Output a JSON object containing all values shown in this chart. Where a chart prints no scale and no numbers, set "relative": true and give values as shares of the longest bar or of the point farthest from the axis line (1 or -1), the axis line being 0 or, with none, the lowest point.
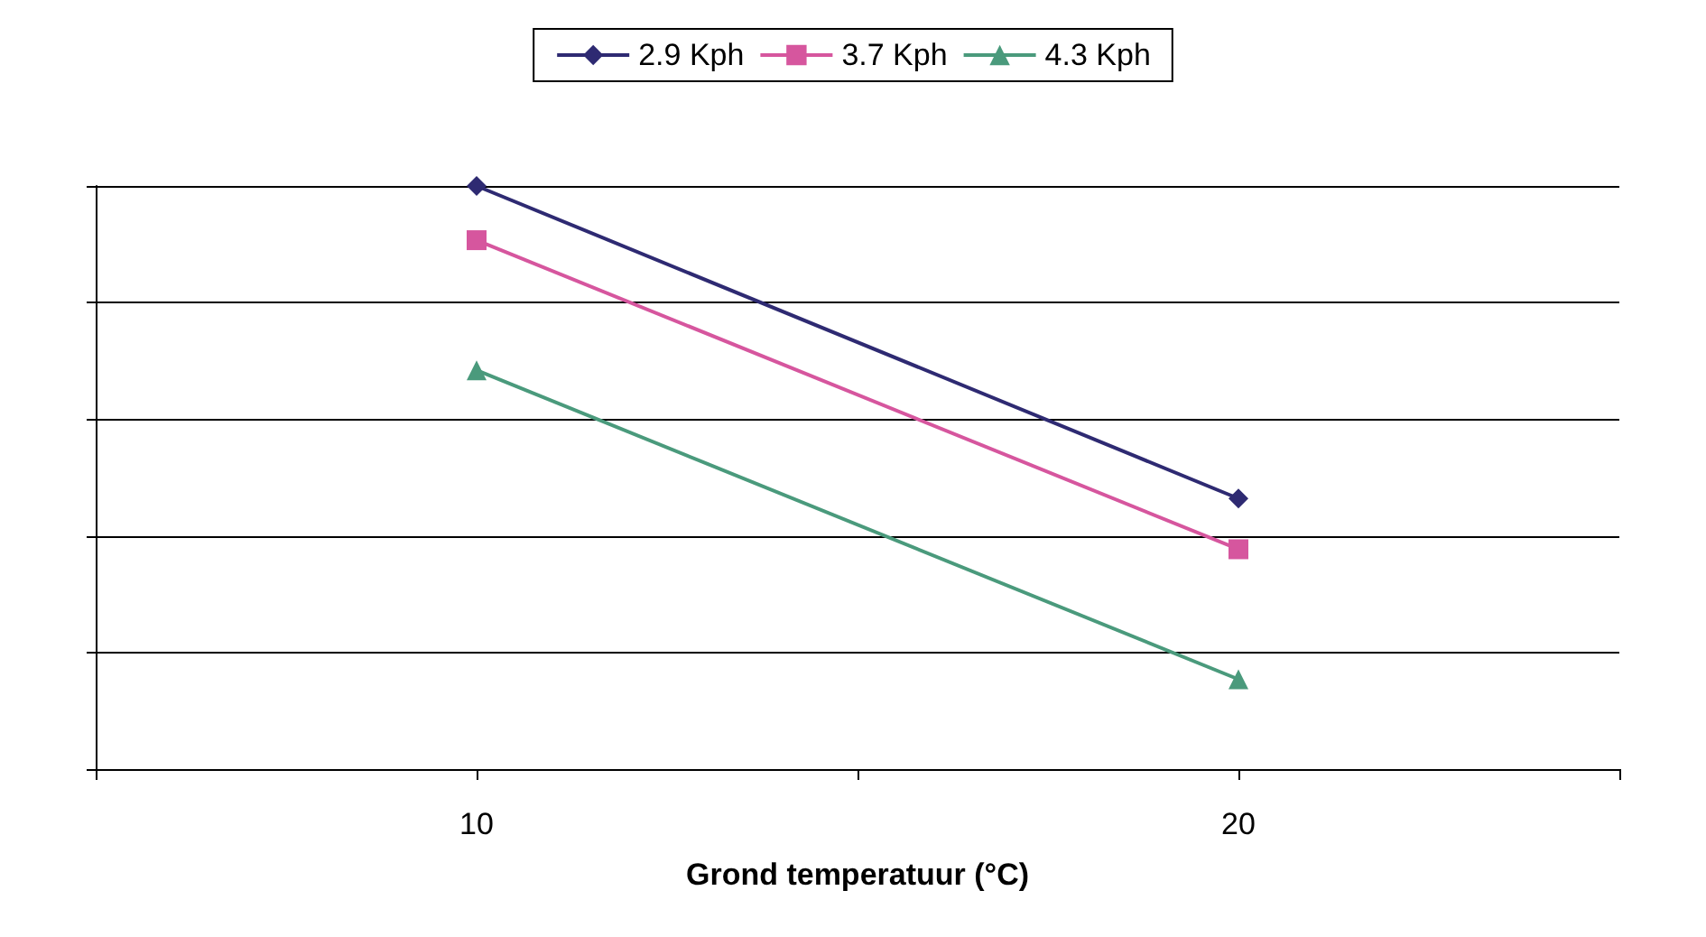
{
  "chart_data": {
    "type": "line",
    "xlabel": "Grond temperatuur (°C)",
    "relative": true,
    "grid": "y",
    "legend": "top",
    "x": [
      10,
      20
    ],
    "xlim": [
      5,
      25
    ],
    "xticks": [
      {
        "value": 5,
        "label": null
      },
      10,
      {
        "value": 15,
        "label": null
      },
      20,
      {
        "value": 25,
        "label": null
      }
    ],
    "series": [
      {
        "name": "2.9 Kph",
        "color": "#2e2a72",
        "marker": "diamond",
        "values": [
          1,
          0.464
        ]
      },
      {
        "name": "3.7 Kph",
        "color": "#d6569e",
        "marker": "square",
        "values": [
          0.907,
          0.377
        ]
      },
      {
        "name": "4.3 Kph",
        "color": "#4a9a7c",
        "marker": "triangle",
        "values": [
          0.684,
          0.154
        ]
      }
    ]
  }
}
